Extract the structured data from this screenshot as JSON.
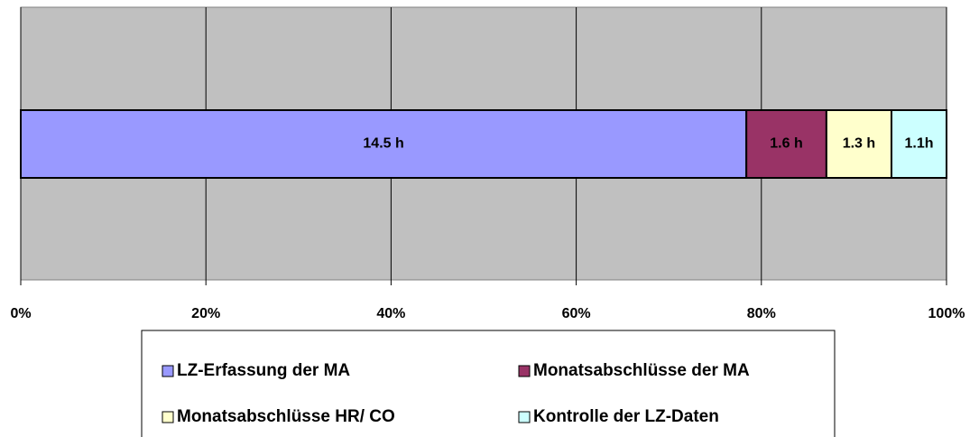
{
  "chart_data": {
    "type": "stacked_bar_100",
    "orientation": "horizontal",
    "series": [
      {
        "name": "LZ-Erfassung der MA",
        "color": "#9999ff",
        "values": [
          14.5
        ],
        "value_labels": [
          "14.5 h"
        ]
      },
      {
        "name": "Monatsabschlüsse der MA",
        "color": "#993366",
        "values": [
          1.6
        ],
        "value_labels": [
          "1.6 h"
        ]
      },
      {
        "name": "Monatsabschlüsse HR/ CO",
        "color": "#ffffcc",
        "values": [
          1.3
        ],
        "value_labels": [
          "1.3 h"
        ]
      },
      {
        "name": "Kontrolle der LZ-Daten",
        "color": "#ccffff",
        "values": [
          1.1
        ],
        "value_labels": [
          "1.1h"
        ]
      }
    ],
    "xlim": [
      0,
      100
    ],
    "xticks": [
      {
        "value": 0,
        "label": "0%"
      },
      {
        "value": 20,
        "label": "20%"
      },
      {
        "value": 40,
        "label": "40%"
      },
      {
        "value": 60,
        "label": "60%"
      },
      {
        "value": 80,
        "label": "80%"
      },
      {
        "value": 100,
        "label": "100%"
      }
    ],
    "grid": true,
    "legend": "bottom"
  }
}
